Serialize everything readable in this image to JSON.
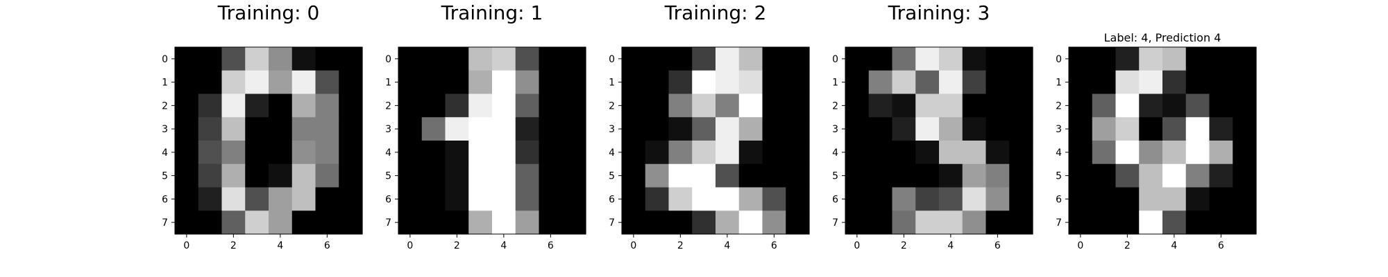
{
  "chart_data": [
    {
      "type": "heatmap",
      "title": "Training: 0",
      "colormap": "gray",
      "vmin": 0,
      "vmax": 16,
      "xticks": [
        0,
        2,
        4,
        6
      ],
      "yticks": [
        0,
        1,
        2,
        3,
        4,
        5,
        6,
        7
      ],
      "values": [
        [
          0,
          0,
          5,
          13,
          9,
          1,
          0,
          0
        ],
        [
          0,
          0,
          13,
          15,
          10,
          15,
          5,
          0
        ],
        [
          0,
          3,
          15,
          2,
          0,
          11,
          8,
          0
        ],
        [
          0,
          4,
          12,
          0,
          0,
          8,
          8,
          0
        ],
        [
          0,
          5,
          8,
          0,
          0,
          9,
          8,
          0
        ],
        [
          0,
          4,
          11,
          0,
          1,
          12,
          7,
          0
        ],
        [
          0,
          2,
          14,
          5,
          10,
          12,
          0,
          0
        ],
        [
          0,
          0,
          6,
          13,
          10,
          0,
          0,
          0
        ]
      ]
    },
    {
      "type": "heatmap",
      "title": "Training: 1",
      "colormap": "gray",
      "vmin": 0,
      "vmax": 16,
      "xticks": [
        0,
        2,
        4,
        6
      ],
      "yticks": [
        0,
        1,
        2,
        3,
        4,
        5,
        6,
        7
      ],
      "values": [
        [
          0,
          0,
          0,
          12,
          13,
          5,
          0,
          0
        ],
        [
          0,
          0,
          0,
          11,
          16,
          9,
          0,
          0
        ],
        [
          0,
          0,
          3,
          15,
          16,
          6,
          0,
          0
        ],
        [
          0,
          7,
          15,
          16,
          16,
          2,
          0,
          0
        ],
        [
          0,
          0,
          1,
          16,
          16,
          3,
          0,
          0
        ],
        [
          0,
          0,
          1,
          16,
          16,
          6,
          0,
          0
        ],
        [
          0,
          0,
          1,
          16,
          16,
          6,
          0,
          0
        ],
        [
          0,
          0,
          0,
          11,
          16,
          10,
          0,
          0
        ]
      ]
    },
    {
      "type": "heatmap",
      "title": "Training: 2",
      "colormap": "gray",
      "vmin": 0,
      "vmax": 16,
      "xticks": [
        0,
        2,
        4,
        6
      ],
      "yticks": [
        0,
        1,
        2,
        3,
        4,
        5,
        6,
        7
      ],
      "values": [
        [
          0,
          0,
          0,
          4,
          15,
          12,
          0,
          0
        ],
        [
          0,
          0,
          3,
          16,
          15,
          14,
          0,
          0
        ],
        [
          0,
          0,
          8,
          13,
          8,
          16,
          0,
          0
        ],
        [
          0,
          0,
          1,
          6,
          15,
          11,
          0,
          0
        ],
        [
          0,
          1,
          8,
          13,
          15,
          1,
          0,
          0
        ],
        [
          0,
          9,
          16,
          16,
          5,
          0,
          0,
          0
        ],
        [
          0,
          3,
          13,
          16,
          16,
          11,
          5,
          0
        ],
        [
          0,
          0,
          0,
          3,
          11,
          16,
          9,
          0
        ]
      ]
    },
    {
      "type": "heatmap",
      "title": "Training: 3",
      "colormap": "gray",
      "vmin": 0,
      "vmax": 16,
      "xticks": [
        0,
        2,
        4,
        6
      ],
      "yticks": [
        0,
        1,
        2,
        3,
        4,
        5,
        6,
        7
      ],
      "values": [
        [
          0,
          0,
          7,
          15,
          13,
          1,
          0,
          0
        ],
        [
          0,
          8,
          13,
          6,
          15,
          4,
          0,
          0
        ],
        [
          0,
          2,
          1,
          13,
          13,
          0,
          0,
          0
        ],
        [
          0,
          0,
          2,
          15,
          11,
          1,
          0,
          0
        ],
        [
          0,
          0,
          0,
          1,
          12,
          12,
          1,
          0
        ],
        [
          0,
          0,
          0,
          0,
          1,
          10,
          8,
          0
        ],
        [
          0,
          0,
          8,
          4,
          5,
          14,
          9,
          0
        ],
        [
          0,
          0,
          7,
          13,
          13,
          9,
          0,
          0
        ]
      ]
    },
    {
      "type": "heatmap",
      "title": "Label: 4, Prediction 4",
      "colormap": "gray",
      "vmin": 0,
      "vmax": 16,
      "xticks": [
        0,
        2,
        4,
        6
      ],
      "yticks": [
        0,
        1,
        2,
        3,
        4,
        5,
        6,
        7
      ],
      "values": [
        [
          0,
          0,
          2,
          13,
          12,
          0,
          0,
          0
        ],
        [
          0,
          0,
          14,
          15,
          3,
          0,
          0,
          0
        ],
        [
          0,
          6,
          16,
          2,
          1,
          5,
          0,
          0
        ],
        [
          0,
          10,
          13,
          0,
          5,
          16,
          2,
          0
        ],
        [
          0,
          7,
          16,
          9,
          12,
          16,
          11,
          0
        ],
        [
          0,
          0,
          5,
          12,
          16,
          8,
          2,
          0
        ],
        [
          0,
          0,
          0,
          12,
          12,
          1,
          0,
          0
        ],
        [
          0,
          0,
          0,
          16,
          5,
          0,
          0,
          0
        ]
      ]
    }
  ]
}
